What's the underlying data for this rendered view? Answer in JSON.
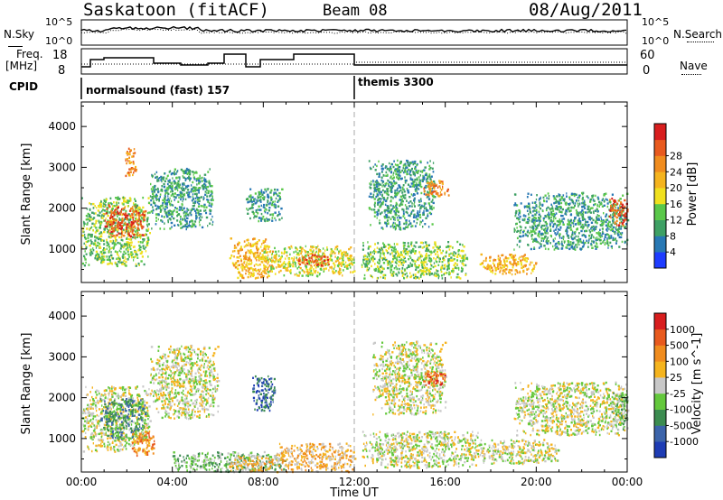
{
  "header": {
    "station": "Saskatoon (fitACF)",
    "beam": "Beam 08",
    "date": "08/Aug/2011"
  },
  "side_labels": {
    "nsky": "N.Sky",
    "nsearch": "N.Search",
    "freq_line1": "Freq.",
    "freq_line2": "[MHz]",
    "nave": "Nave",
    "cpid": "CPID"
  },
  "noise_panel": {
    "left_ticks": [
      "10^5",
      "10^0"
    ],
    "right_ticks": [
      "10^5",
      "10^0"
    ]
  },
  "freq_panel": {
    "left_ticks": [
      "18",
      "8"
    ],
    "right_ticks": [
      "60",
      "0"
    ]
  },
  "cpid_panel": {
    "segments": [
      {
        "start_hour": 0,
        "label": "normalsound (fast) 157"
      },
      {
        "start_hour": 12,
        "label": "themis 3300"
      }
    ]
  },
  "chart_data": [
    {
      "type": "heatmap",
      "panel": "power",
      "ylabel": "Slant Range [km]",
      "xlabel": "Time UT",
      "xlim_hours": [
        0,
        24
      ],
      "ylim_km": [
        180,
        4600
      ],
      "x_tick_labels": [
        "00:00",
        "04:00",
        "08:00",
        "12:00",
        "16:00",
        "20:00",
        "00:00"
      ],
      "y_tick_labels": [
        "1000",
        "2000",
        "3000",
        "4000"
      ],
      "y_ticks_km": [
        1000,
        2000,
        3000,
        4000
      ],
      "colorbar": {
        "label": "Power [dB]",
        "ticks": [
          "4",
          "8",
          "12",
          "16",
          "20",
          "24",
          "28"
        ],
        "colors": [
          "#1e3cff",
          "#2878b4",
          "#3ea064",
          "#5ac84a",
          "#f0e01e",
          "#f5b41e",
          "#f08c1e",
          "#e85a1e",
          "#d81e1e"
        ]
      },
      "echo_regions": [
        {
          "t": [
            0.0,
            3.0
          ],
          "r": [
            600,
            2300
          ],
          "level": 3
        },
        {
          "t": [
            1.0,
            2.8
          ],
          "r": [
            1300,
            2100
          ],
          "level": 7
        },
        {
          "t": [
            1.9,
            2.4
          ],
          "r": [
            2800,
            3500
          ],
          "level": 6
        },
        {
          "t": [
            3.0,
            5.8
          ],
          "r": [
            1500,
            3000
          ],
          "level": 2
        },
        {
          "t": [
            6.5,
            8.5
          ],
          "r": [
            300,
            1300
          ],
          "level": 5
        },
        {
          "t": [
            7.2,
            8.8
          ],
          "r": [
            1700,
            2500
          ],
          "level": 2
        },
        {
          "t": [
            8.0,
            12.0
          ],
          "r": [
            350,
            1100
          ],
          "level": 4
        },
        {
          "t": [
            9.5,
            11.0
          ],
          "r": [
            600,
            900
          ],
          "level": 7
        },
        {
          "t": [
            12.3,
            17.0
          ],
          "r": [
            300,
            1200
          ],
          "level": 3
        },
        {
          "t": [
            12.6,
            15.5
          ],
          "r": [
            1500,
            3200
          ],
          "level": 2
        },
        {
          "t": [
            15.0,
            16.2
          ],
          "r": [
            2300,
            2700
          ],
          "level": 6
        },
        {
          "t": [
            17.5,
            20.0
          ],
          "r": [
            400,
            900
          ],
          "level": 5
        },
        {
          "t": [
            19.0,
            24.0
          ],
          "r": [
            1000,
            2400
          ],
          "level": 2
        },
        {
          "t": [
            23.2,
            24.0
          ],
          "r": [
            1600,
            2300
          ],
          "level": 7
        }
      ]
    },
    {
      "type": "heatmap",
      "panel": "velocity",
      "ylabel": "Slant Range [km]",
      "xlabel": "Time UT",
      "xlim_hours": [
        0,
        24
      ],
      "ylim_km": [
        180,
        4600
      ],
      "x_tick_labels": [
        "00:00",
        "04:00",
        "08:00",
        "12:00",
        "16:00",
        "20:00",
        "00:00"
      ],
      "y_tick_labels": [
        "1000",
        "2000",
        "3000",
        "4000"
      ],
      "y_ticks_km": [
        1000,
        2000,
        3000,
        4000
      ],
      "colorbar": {
        "label": "Velocity [m s^-1]",
        "ticks": [
          "1000",
          "500",
          "100",
          "25",
          "-25",
          "-100",
          "-500",
          "-1000"
        ],
        "colors": [
          "#1e3cb4",
          "#3c64aa",
          "#3c8c50",
          "#64c83c",
          "#c8c8c8",
          "#f5b41e",
          "#f08c1e",
          "#e85a1e",
          "#d81e1e"
        ]
      },
      "echo_regions": [
        {
          "t": [
            0.0,
            3.0
          ],
          "r": [
            700,
            2300
          ],
          "level": 4
        },
        {
          "t": [
            0.8,
            2.8
          ],
          "r": [
            1000,
            2000
          ],
          "level": 2
        },
        {
          "t": [
            2.2,
            3.2
          ],
          "r": [
            600,
            1200
          ],
          "level": 6
        },
        {
          "t": [
            3.0,
            6.0
          ],
          "r": [
            1500,
            3300
          ],
          "level": 4
        },
        {
          "t": [
            4.0,
            9.0
          ],
          "r": [
            200,
            700
          ],
          "level": 3
        },
        {
          "t": [
            6.5,
            8.5
          ],
          "r": [
            200,
            600
          ],
          "level": 5
        },
        {
          "t": [
            7.5,
            8.5
          ],
          "r": [
            1700,
            2600
          ],
          "level": 1
        },
        {
          "t": [
            8.5,
            12.0
          ],
          "r": [
            200,
            900
          ],
          "level": 5
        },
        {
          "t": [
            12.3,
            17.5
          ],
          "r": [
            300,
            1200
          ],
          "level": 4
        },
        {
          "t": [
            12.8,
            16.0
          ],
          "r": [
            1600,
            3400
          ],
          "level": 4
        },
        {
          "t": [
            15.0,
            16.0
          ],
          "r": [
            2300,
            2700
          ],
          "level": 7
        },
        {
          "t": [
            17.5,
            21.0
          ],
          "r": [
            400,
            1000
          ],
          "level": 4
        },
        {
          "t": [
            19.0,
            24.0
          ],
          "r": [
            1100,
            2400
          ],
          "level": 4
        },
        {
          "t": [
            23.3,
            24.0
          ],
          "r": [
            1200,
            2200
          ],
          "level": 3
        }
      ]
    }
  ]
}
